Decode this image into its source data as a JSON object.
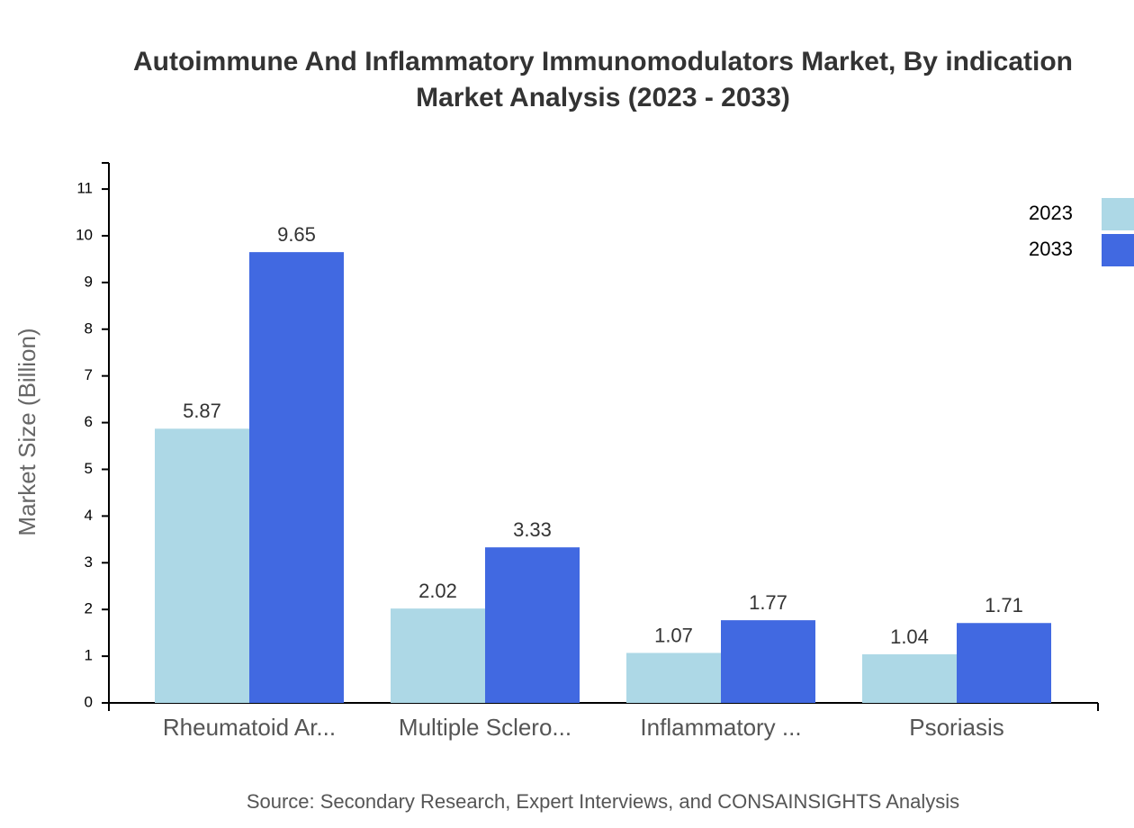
{
  "chart_data": {
    "type": "bar",
    "title": "Autoimmune And Inflammatory Immunomodulators Market, By indication",
    "subtitle": "Market Analysis (2023 - 2033)",
    "y_label": "Market Size (Billion)",
    "source": "Source: Secondary Research, Expert Interviews, and CONSAINSIGHTS Analysis",
    "categories": [
      "Rheumatoid Ar...",
      "Multiple Sclero...",
      "Inflammatory ...",
      "Psoriasis"
    ],
    "series": [
      {
        "name": "2023",
        "color": "#add8e6",
        "values": [
          5.87,
          2.02,
          1.07,
          1.04
        ]
      },
      {
        "name": "2033",
        "color": "#4169e1",
        "values": [
          9.65,
          3.33,
          1.77,
          1.71
        ]
      }
    ],
    "ylim": [
      0,
      11.56
    ],
    "yticks": [
      0,
      1,
      2,
      3,
      4,
      5,
      6,
      7,
      8,
      9,
      10,
      11
    ],
    "grid": false,
    "legend": "top-right"
  }
}
